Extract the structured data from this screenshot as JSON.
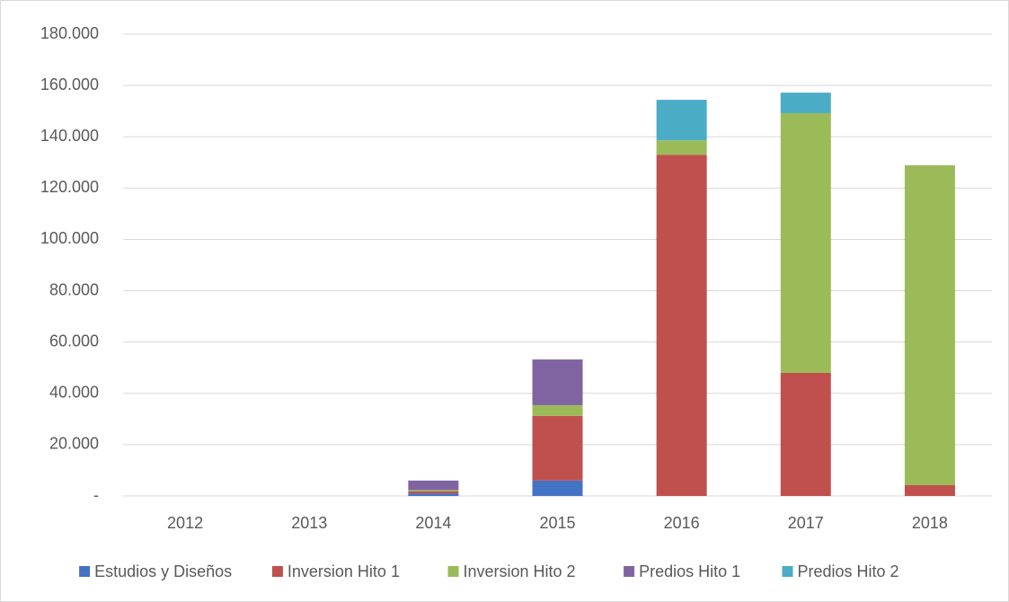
{
  "chart_data": {
    "type": "stacked-bar",
    "categories": [
      "2012",
      "2013",
      "2014",
      "2015",
      "2016",
      "2017",
      "2018"
    ],
    "series": [
      {
        "name": "Estudios y Diseños",
        "color": "#4472c4",
        "values": [
          0,
          0,
          1000,
          6000,
          0,
          0,
          0
        ]
      },
      {
        "name": "Inversion Hito 1",
        "color": "#c0504d",
        "values": [
          0,
          0,
          800,
          25200,
          133000,
          48000,
          4200
        ]
      },
      {
        "name": "Inversion Hito 2",
        "color": "#9bbb59",
        "values": [
          0,
          0,
          500,
          4200,
          5600,
          101200,
          124700
        ]
      },
      {
        "name": "Predios Hito 1",
        "color": "#8064a2",
        "values": [
          0,
          0,
          3700,
          17800,
          0,
          0,
          0
        ]
      },
      {
        "name": "Predios Hito 2",
        "color": "#4bacc6",
        "values": [
          0,
          0,
          0,
          0,
          15800,
          8000,
          0
        ]
      }
    ],
    "ylim": [
      0,
      180000
    ],
    "yticks": [
      {
        "value": 0,
        "label": "-"
      },
      {
        "value": 20000,
        "label": "20.000"
      },
      {
        "value": 40000,
        "label": "40.000"
      },
      {
        "value": 60000,
        "label": "60.000"
      },
      {
        "value": 80000,
        "label": "80.000"
      },
      {
        "value": 100000,
        "label": "100.000"
      },
      {
        "value": 120000,
        "label": "120.000"
      },
      {
        "value": 140000,
        "label": "140.000"
      },
      {
        "value": 160000,
        "label": "160.000"
      },
      {
        "value": 180000,
        "label": "180.000"
      }
    ],
    "grid": true,
    "legend": "bottom"
  }
}
